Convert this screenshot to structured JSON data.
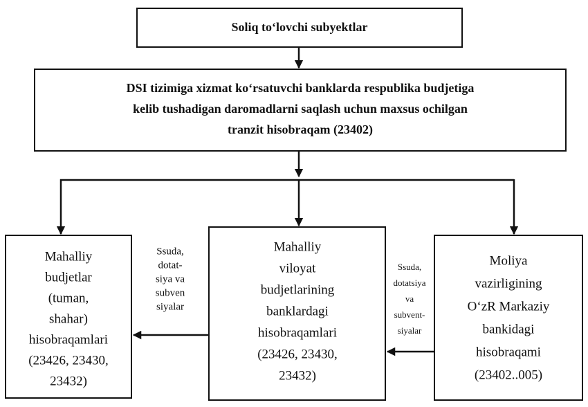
{
  "nodes": [
    {
      "lines": [
        "Soliq to‘lovchi subyektlar"
      ]
    },
    {
      "lines": [
        "DSI tizimiga xizmat ko‘rsatuvchi banklarda respublika budjetiga",
        "kelib tushadigan daromadlarni saqlash uchun maxsus ochilgan",
        "tranzit hisobraqam (23402)"
      ]
    },
    {
      "lines": [
        "Mahalliy",
        "budjetlar",
        "(tuman,",
        "shahar)",
        "hisobraqamlari",
        "(23426, 23430,",
        "23432)"
      ]
    },
    {
      "lines": [
        "Mahalliy",
        "viloyat",
        "budjetlarining",
        "banklardagi",
        "hisobraqamlari",
        "(23426, 23430,",
        "23432)"
      ]
    },
    {
      "lines": [
        "Moliya",
        "vazirligining",
        "O‘zR Markaziy",
        "bankidagi",
        "hisobraqami",
        "(23402..005)"
      ]
    }
  ],
  "edge_labels": [
    {
      "lines": [
        "Ssuda,",
        "dotat-",
        "siya va",
        "subven",
        "siyalar"
      ]
    },
    {
      "lines": [
        "Ssuda,",
        "dotatsiya",
        "va",
        "subvent-",
        "siyalar"
      ]
    }
  ]
}
